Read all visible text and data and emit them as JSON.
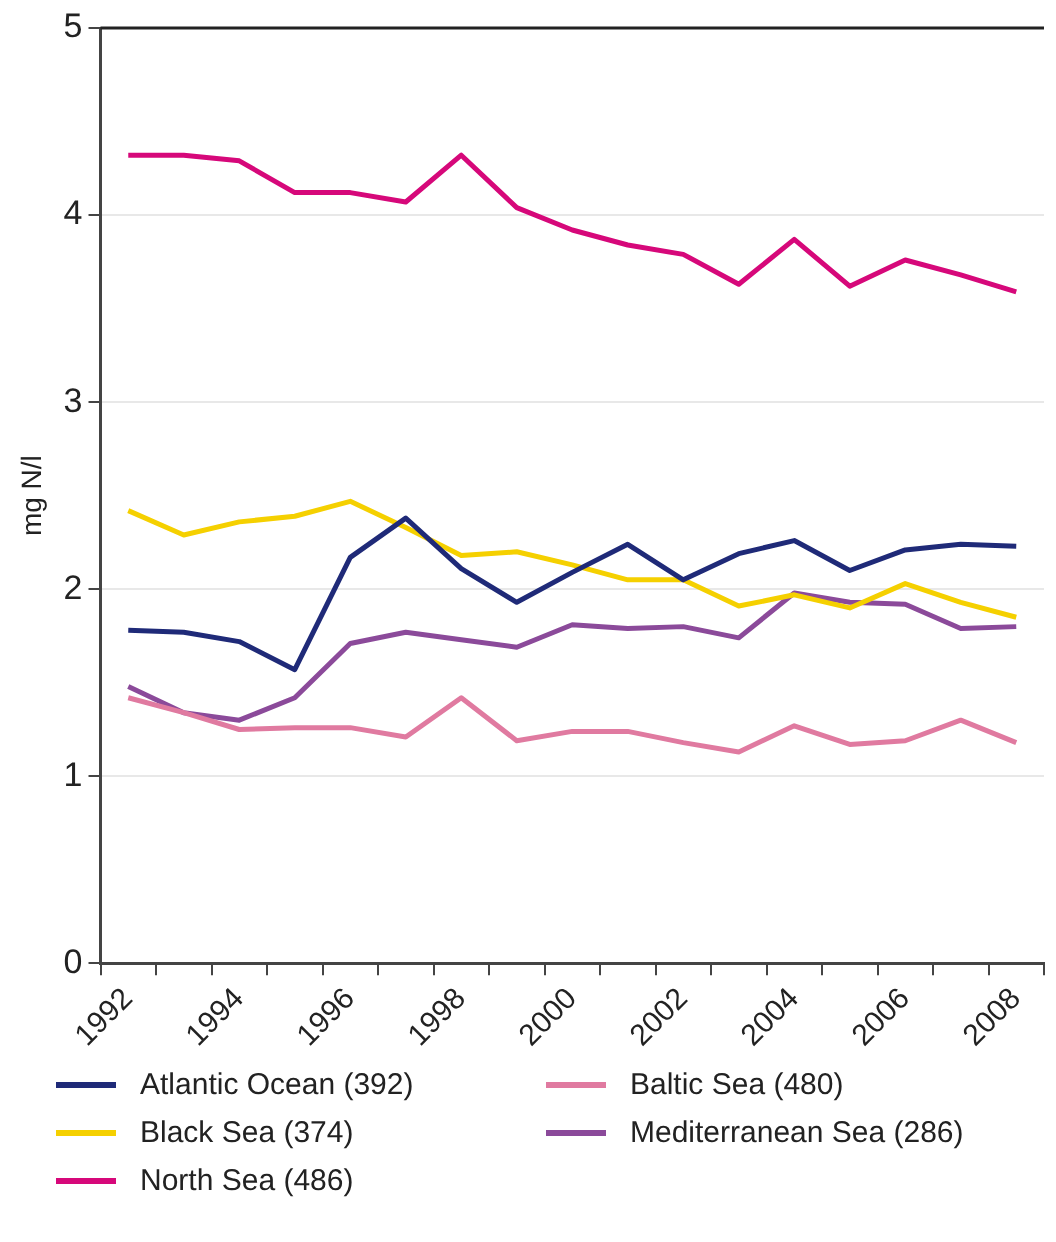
{
  "chart_data": {
    "type": "line",
    "ylabel": "mg N/l",
    "categories": [
      "1992",
      null,
      "1994",
      null,
      "1996",
      null,
      "1998",
      null,
      "2000",
      null,
      "2002",
      null,
      "2004",
      null,
      "2006",
      null,
      "2008"
    ],
    "series": [
      {
        "name": "Atlantic Ocean (392)",
        "color": "#1f2a78",
        "values": [
          1.78,
          1.77,
          1.72,
          1.57,
          2.17,
          2.38,
          2.11,
          1.93,
          2.09,
          2.24,
          2.05,
          2.19,
          2.26,
          2.1,
          2.21,
          2.24,
          2.23
        ]
      },
      {
        "name": "Black Sea (374)",
        "color": "#f5d000",
        "values": [
          2.42,
          2.29,
          2.36,
          2.39,
          2.47,
          2.33,
          2.18,
          2.2,
          2.13,
          2.05,
          2.05,
          1.91,
          1.97,
          1.9,
          2.03,
          1.93,
          1.85
        ]
      },
      {
        "name": "North Sea (486)",
        "color": "#d6087a",
        "values": [
          4.32,
          4.32,
          4.29,
          4.12,
          4.12,
          4.07,
          4.32,
          4.04,
          3.92,
          3.84,
          3.79,
          3.63,
          3.87,
          3.62,
          3.76,
          3.68,
          3.59
        ]
      },
      {
        "name": "Baltic Sea (480)",
        "color": "#e07aa0",
        "values": [
          1.42,
          1.34,
          1.25,
          1.26,
          1.26,
          1.21,
          1.42,
          1.19,
          1.24,
          1.24,
          1.18,
          1.13,
          1.27,
          1.17,
          1.19,
          1.3,
          1.18
        ]
      },
      {
        "name": "Mediterranean Sea (286)",
        "color": "#8b4a9a",
        "values": [
          1.48,
          1.34,
          1.3,
          1.42,
          1.71,
          1.77,
          1.73,
          1.69,
          1.81,
          1.79,
          1.8,
          1.74,
          1.98,
          1.93,
          1.92,
          1.79,
          1.8
        ]
      }
    ],
    "ylim": [
      0,
      5
    ],
    "yticks": [
      0,
      1,
      2,
      3,
      4,
      5
    ],
    "grid": "y",
    "legend": "bottom",
    "marker": "none",
    "line_style": "solid"
  }
}
